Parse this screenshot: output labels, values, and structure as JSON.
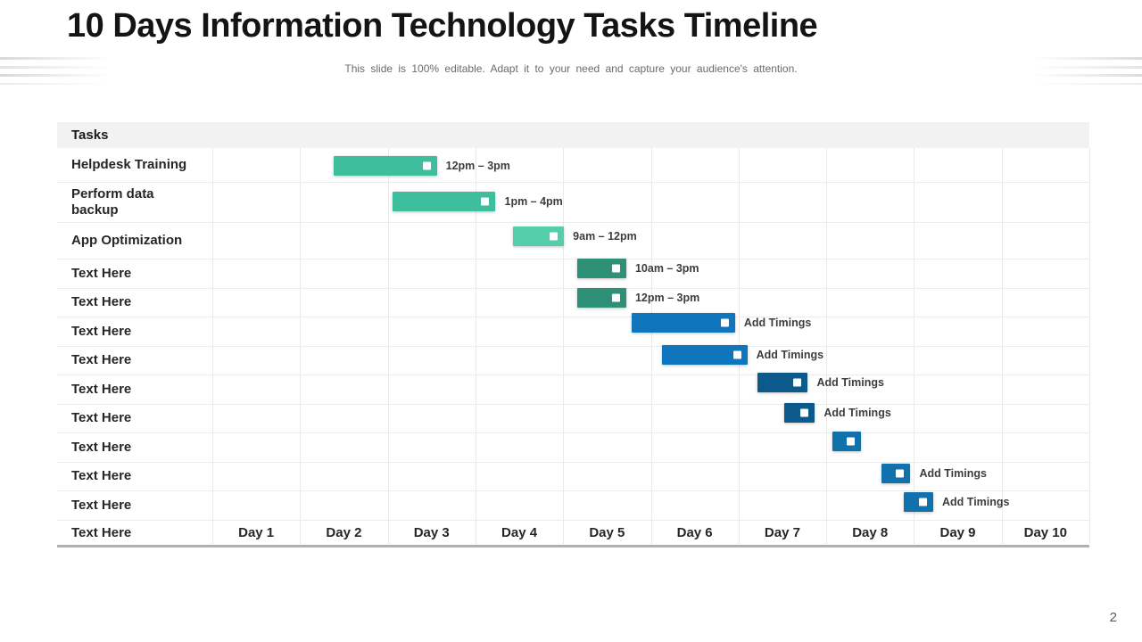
{
  "slide": {
    "title": "10 Days Information Technology Tasks Timeline",
    "subtitle": "This slide is 100% editable. Adapt it to your need and capture your audience's attention.",
    "page_number": "2"
  },
  "colors": {
    "teal": "#3FBE9D",
    "mint": "#54CDAB",
    "dark_sea_green": "#2E9077",
    "bright_blue": "#0F76BE",
    "navy_blue": "#0C598C",
    "mid_blue": "#1171AD",
    "header_bg": "#F2F2F2",
    "grid_line": "#EAEAEA",
    "bottom_border": "#B0B0B0",
    "marker": "#FFFFFF"
  },
  "chart_data": {
    "type": "gantt",
    "title": "10 Days Information Technology Tasks Timeline",
    "corner_label": "Tasks",
    "axis_label": "Text Here",
    "x_axis": {
      "categories": [
        "Day 1",
        "Day 2",
        "Day 3",
        "Day 4",
        "Day 5",
        "Day 6",
        "Day 7",
        "Day 8",
        "Day 9",
        "Day 10"
      ],
      "range": [
        1,
        11
      ],
      "grid": true
    },
    "tasks": [
      {
        "label": "Helpdesk Training",
        "start_day": 2.38,
        "end_day": 3.56,
        "time_label": "12pm – 3pm",
        "color_key": "teal"
      },
      {
        "label": "Perform data backup",
        "start_day": 3.05,
        "end_day": 4.23,
        "time_label": "1pm – 4pm",
        "color_key": "teal"
      },
      {
        "label": "App Optimization",
        "start_day": 4.43,
        "end_day": 5.01,
        "time_label": "9am – 12pm",
        "color_key": "mint"
      },
      {
        "label": "Text Here",
        "start_day": 5.16,
        "end_day": 5.72,
        "time_label": "10am – 3pm",
        "color_key": "dark_sea_green"
      },
      {
        "label": "Text Here",
        "start_day": 5.16,
        "end_day": 5.72,
        "time_label": "12pm – 3pm",
        "color_key": "dark_sea_green"
      },
      {
        "label": "Text Here",
        "start_day": 5.78,
        "end_day": 6.96,
        "time_label": "Add Timings",
        "color_key": "bright_blue"
      },
      {
        "label": "Text Here",
        "start_day": 6.13,
        "end_day": 7.1,
        "time_label": "Add Timings",
        "color_key": "bright_blue"
      },
      {
        "label": "Text Here",
        "start_day": 7.22,
        "end_day": 7.79,
        "time_label": "Add Timings",
        "color_key": "navy_blue"
      },
      {
        "label": "Text Here",
        "start_day": 7.52,
        "end_day": 7.87,
        "time_label": "Add Timings",
        "color_key": "navy_blue"
      },
      {
        "label": "Text Here",
        "start_day": 8.07,
        "end_day": 8.4,
        "time_label": null,
        "color_key": "mid_blue"
      },
      {
        "label": "Text Here",
        "start_day": 8.63,
        "end_day": 8.96,
        "time_label": "Add Timings",
        "color_key": "mid_blue"
      },
      {
        "label": "Text Here",
        "start_day": 8.88,
        "end_day": 9.22,
        "time_label": "Add Timings",
        "color_key": "mid_blue"
      }
    ]
  }
}
